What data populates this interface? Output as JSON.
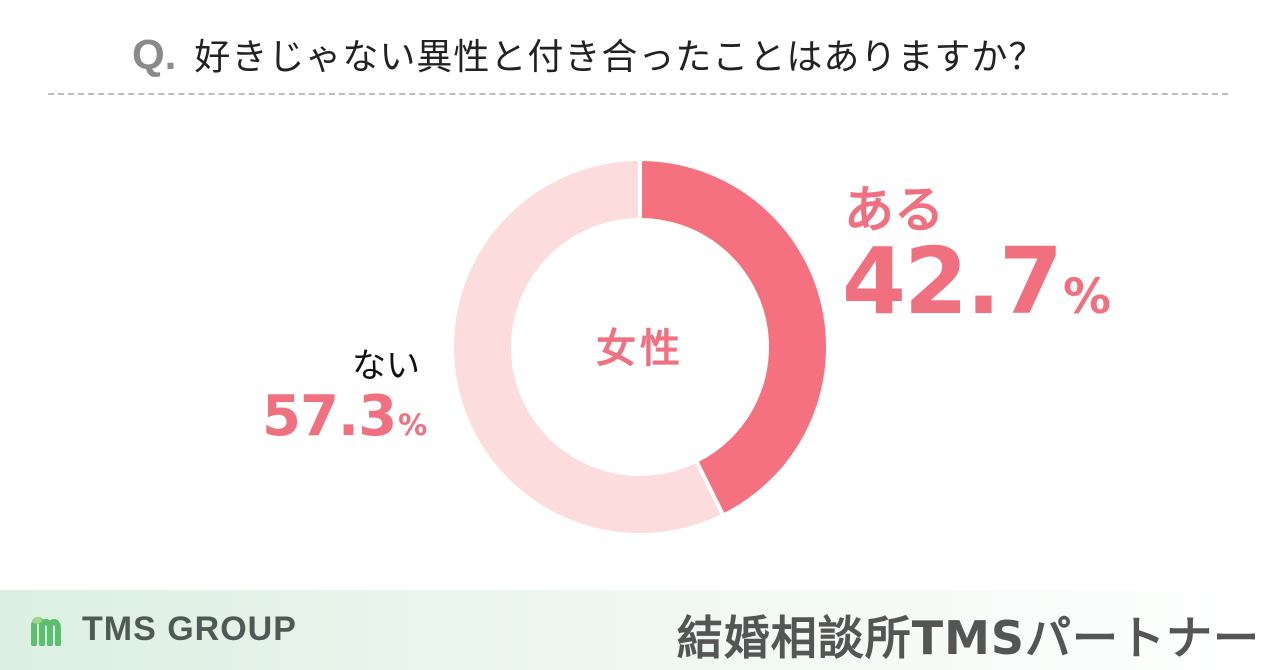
{
  "question": {
    "mark": "Q.",
    "text": "好きじゃない異性と付き合ったことはありますか？"
  },
  "chart_data": {
    "type": "pie",
    "variant": "donut",
    "center_label": "女性",
    "series": [
      {
        "label": "ある",
        "value": 42.7,
        "display": "42.7",
        "unit": "%",
        "color": "#f5717f"
      },
      {
        "label": "ない",
        "value": 57.3,
        "display": "57.3",
        "unit": "%",
        "color": "#fcdcdc"
      }
    ],
    "label_colors": {
      "value": "#f0707f",
      "center": "#f0707f",
      "category_nai": "#111111"
    }
  },
  "footer": {
    "logo_text": "TMS GROUP",
    "logo_icon": "tms-m-leaf-icon",
    "brand_text": "結婚相談所TMSパートナー",
    "colors": {
      "logo_icon": "#5bbf6e",
      "text": "#4f5a57"
    }
  }
}
